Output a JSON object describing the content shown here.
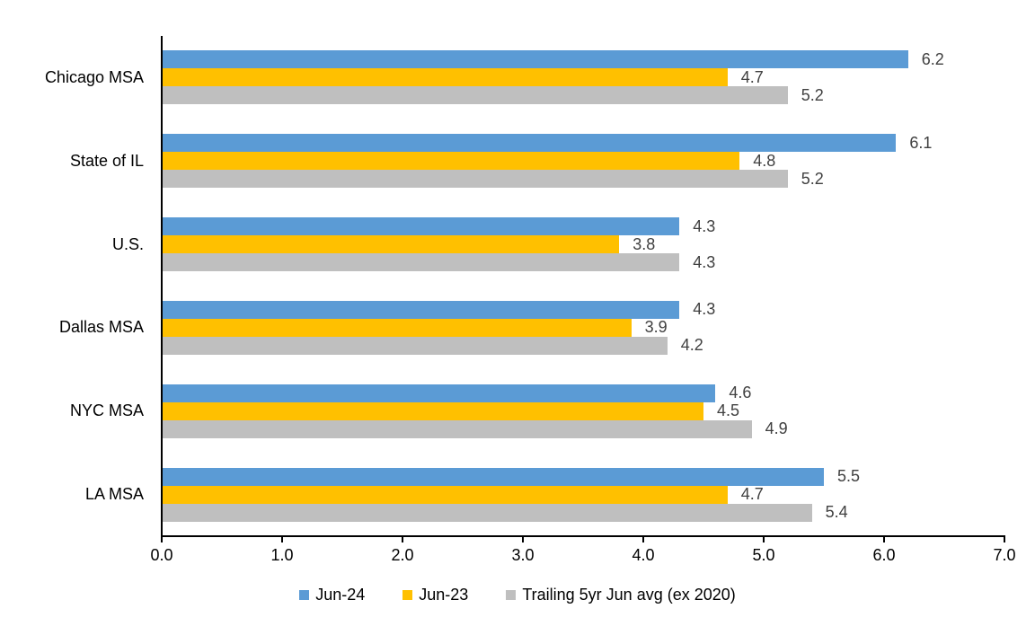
{
  "chart_data": {
    "type": "bar",
    "orientation": "horizontal",
    "title": "",
    "xlabel": "",
    "ylabel": "",
    "grid": false,
    "data_labels": true,
    "legend_position": "bottom",
    "xlim": [
      0.0,
      7.0
    ],
    "x_ticks": [
      "0.0",
      "1.0",
      "2.0",
      "3.0",
      "4.0",
      "5.0",
      "6.0",
      "7.0"
    ],
    "categories": [
      "Chicago MSA",
      "State of IL",
      "U.S.",
      "Dallas MSA",
      "NYC MSA",
      "LA MSA"
    ],
    "series": [
      {
        "name": "Jun-24",
        "color": "#5B9BD5",
        "values": [
          6.2,
          6.1,
          4.3,
          4.3,
          4.6,
          5.5
        ]
      },
      {
        "name": "Jun-23",
        "color": "#FFC000",
        "values": [
          4.7,
          4.8,
          3.8,
          3.9,
          4.5,
          4.7
        ]
      },
      {
        "name": "Trailing 5yr Jun avg (ex 2020)",
        "color": "#BFBFBF",
        "values": [
          5.2,
          5.2,
          4.3,
          4.2,
          4.9,
          5.4
        ]
      }
    ]
  },
  "colors": {
    "background": "#FFFFFF",
    "axis": "#000000",
    "category_text": "#000000",
    "tick_text": "#000000",
    "data_label_text": "#404040",
    "legend_text": "#000000"
  }
}
